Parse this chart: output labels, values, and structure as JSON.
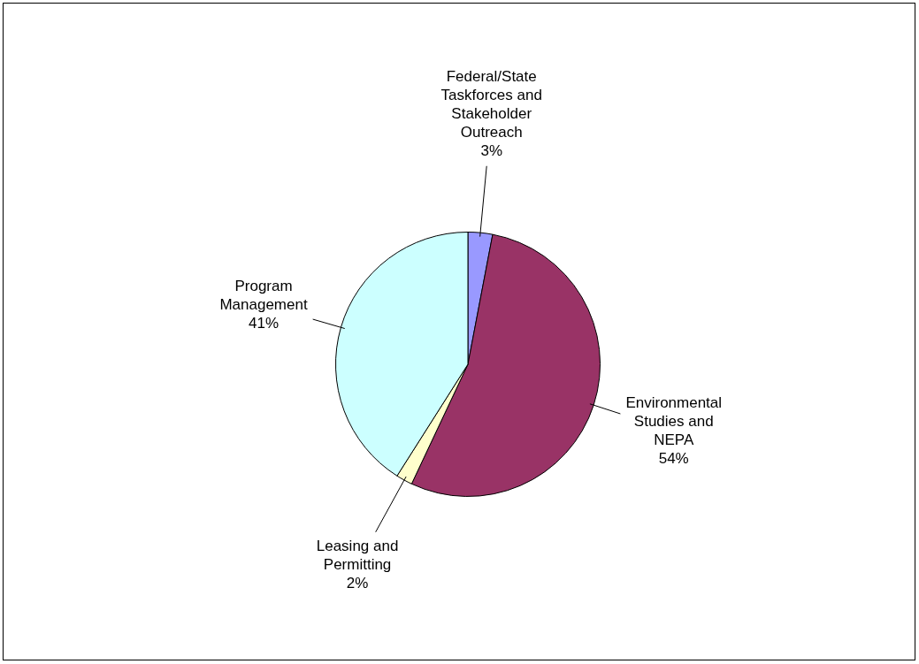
{
  "chart_data": {
    "type": "pie",
    "categories": [
      "Federal/State Taskforces and Stakeholder Outreach",
      "Environmental Studies and NEPA",
      "Leasing and Permitting",
      "Program Management"
    ],
    "values": [
      3,
      54,
      2,
      41
    ],
    "value_labels": [
      "3%",
      "54%",
      "2%",
      "41%"
    ],
    "colors": [
      "#9999ff",
      "#993366",
      "#ffffcc",
      "#ccffff"
    ],
    "legend": false
  }
}
